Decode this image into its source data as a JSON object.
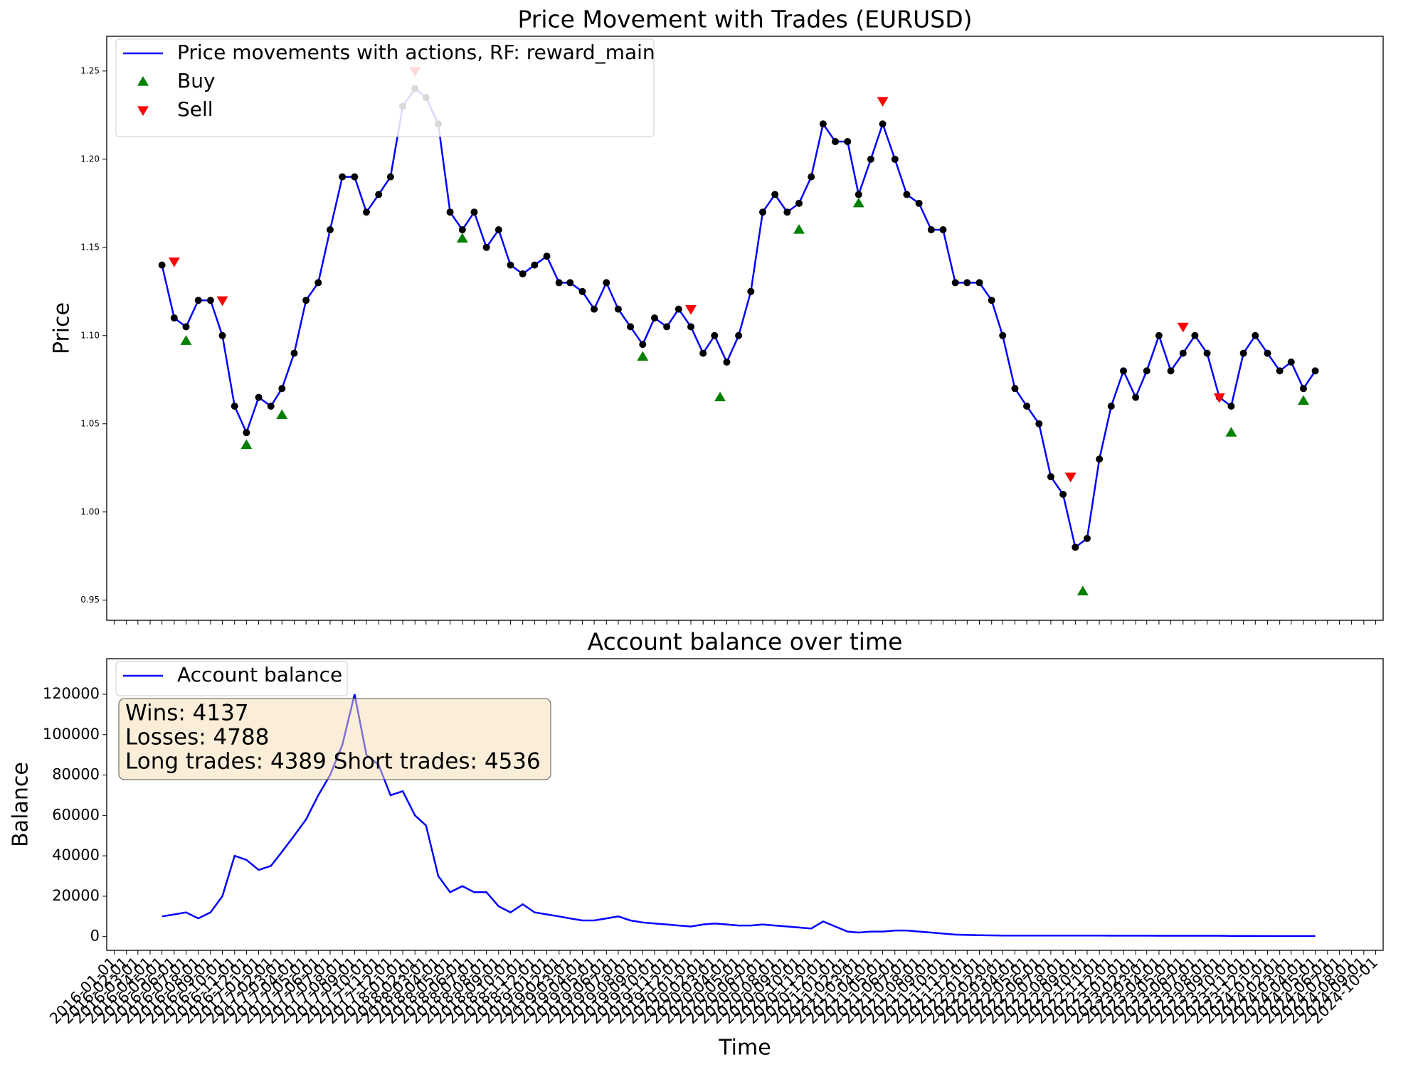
{
  "chart_data": [
    {
      "type": "line",
      "title": "Price Movement with Trades (EURUSD)",
      "ylabel": "Price",
      "xlim": [
        "2015-12-13",
        "2024-10-20"
      ],
      "ylim": [
        0.9386,
        1.2697
      ],
      "yticks": [
        0.95,
        {
          "value": 1.0,
          "label": "1.00"
        },
        1.05,
        {
          "value": 1.1,
          "label": "1.10"
        },
        1.15,
        {
          "value": 1.2,
          "label": "1.20"
        },
        1.25
      ],
      "legend": "upper left",
      "series": [
        {
          "name": "Price movements with actions, RF: reward_main",
          "type": "line",
          "color": "#0000ff",
          "marker_color": "#000000",
          "x": [
            "2016-05-01",
            "2016-06-01",
            "2016-07-01",
            "2016-08-01",
            "2016-09-01",
            "2016-10-01",
            "2016-11-01",
            "2016-12-01",
            "2017-01-01",
            "2017-02-01",
            "2017-03-01",
            "2017-04-01",
            "2017-05-01",
            "2017-06-01",
            "2017-07-01",
            "2017-08-01",
            "2017-09-01",
            "2017-10-01",
            "2017-11-01",
            "2017-12-01",
            "2018-01-01",
            "2018-02-01",
            "2018-03-01",
            "2018-04-01",
            "2018-05-01",
            "2018-06-01",
            "2018-07-01",
            "2018-08-01",
            "2018-09-01",
            "2018-10-01",
            "2018-11-01",
            "2018-12-01",
            "2019-01-01",
            "2019-02-01",
            "2019-03-01",
            "2019-04-01",
            "2019-05-01",
            "2019-06-01",
            "2019-07-01",
            "2019-08-01",
            "2019-09-01",
            "2019-10-01",
            "2019-11-01",
            "2019-12-01",
            "2020-01-01",
            "2020-02-01",
            "2020-03-01",
            "2020-04-01",
            "2020-05-01",
            "2020-06-01",
            "2020-07-01",
            "2020-08-01",
            "2020-09-01",
            "2020-10-01",
            "2020-11-01",
            "2020-12-01",
            "2021-01-01",
            "2021-02-01",
            "2021-03-01",
            "2021-04-01",
            "2021-05-01",
            "2021-06-01",
            "2021-07-01",
            "2021-08-01",
            "2021-09-01",
            "2021-10-01",
            "2021-11-01",
            "2021-12-01",
            "2022-01-01",
            "2022-02-01",
            "2022-03-01",
            "2022-04-01",
            "2022-05-01",
            "2022-06-01",
            "2022-07-01",
            "2022-08-01",
            "2022-09-01",
            "2022-10-01",
            "2022-11-01",
            "2022-12-01",
            "2023-01-01",
            "2023-02-01",
            "2023-03-01",
            "2023-04-01",
            "2023-05-01",
            "2023-06-01",
            "2023-07-01",
            "2023-08-01",
            "2023-09-01",
            "2023-10-01",
            "2023-11-01",
            "2023-12-01",
            "2024-01-01",
            "2024-02-01",
            "2024-03-01",
            "2024-04-01",
            "2024-05-01"
          ],
          "values": [
            1.14,
            1.11,
            1.105,
            1.12,
            1.12,
            1.1,
            1.06,
            1.045,
            1.065,
            1.06,
            1.07,
            1.09,
            1.12,
            1.13,
            1.16,
            1.19,
            1.19,
            1.17,
            1.18,
            1.19,
            1.23,
            1.24,
            1.235,
            1.22,
            1.17,
            1.16,
            1.17,
            1.15,
            1.16,
            1.14,
            1.135,
            1.14,
            1.145,
            1.13,
            1.13,
            1.125,
            1.115,
            1.13,
            1.115,
            1.105,
            1.095,
            1.11,
            1.105,
            1.115,
            1.105,
            1.09,
            1.1,
            1.085,
            1.1,
            1.125,
            1.17,
            1.18,
            1.17,
            1.175,
            1.19,
            1.22,
            1.21,
            1.21,
            1.18,
            1.2,
            1.22,
            1.2,
            1.18,
            1.175,
            1.16,
            1.16,
            1.13,
            1.13,
            1.13,
            1.12,
            1.1,
            1.07,
            1.06,
            1.05,
            1.02,
            1.01,
            0.98,
            0.985,
            1.03,
            1.06,
            1.08,
            1.065,
            1.08,
            1.1,
            1.08,
            1.09,
            1.1,
            1.09,
            1.065,
            1.06,
            1.09,
            1.1,
            1.09,
            1.08,
            1.085,
            1.07,
            1.08
          ]
        },
        {
          "name": "Buy",
          "type": "scatter",
          "marker": "triangle-up",
          "color": "#008000",
          "x": [
            "2016-07-01",
            "2016-12-01",
            "2017-03-01",
            "2018-06-01",
            "2019-09-01",
            "2020-03-15",
            "2020-10-01",
            "2021-03-01",
            "2022-09-20",
            "2023-10-01",
            "2024-04-01"
          ],
          "values": [
            1.097,
            1.038,
            1.055,
            1.155,
            1.088,
            1.065,
            1.16,
            1.175,
            0.955,
            1.045,
            1.063
          ]
        },
        {
          "name": "Sell",
          "type": "scatter",
          "marker": "triangle-down",
          "color": "#ff0000",
          "x": [
            "2016-06-01",
            "2016-10-01",
            "2018-02-01",
            "2020-01-01",
            "2021-05-01",
            "2022-08-20",
            "2023-06-01",
            "2023-09-01"
          ],
          "values": [
            1.142,
            1.12,
            1.25,
            1.115,
            1.233,
            1.02,
            1.105,
            1.065
          ]
        }
      ]
    },
    {
      "type": "line",
      "title": "Account balance over time",
      "xlabel": "Time",
      "ylabel": "Balance",
      "xlim": [
        "2015-12-13",
        "2024-10-20"
      ],
      "ylim": [
        -6800,
        137600
      ],
      "yticks": [
        0,
        20000,
        40000,
        60000,
        80000,
        100000,
        120000
      ],
      "xticks": [
        "2016-01-01",
        "2016-02-01",
        "2016-03-01",
        "2016-04-01",
        "2016-05-01",
        "2016-06-01",
        "2016-07-01",
        "2016-08-01",
        "2016-09-01",
        "2016-10-01",
        "2016-11-01",
        "2016-12-01",
        "2017-01-01",
        "2017-02-01",
        "2017-03-01",
        "2017-04-01",
        "2017-05-01",
        "2017-06-01",
        "2017-07-01",
        "2017-08-01",
        "2017-09-01",
        "2017-10-01",
        "2017-11-01",
        "2017-12-01",
        "2018-01-01",
        "2018-02-01",
        "2018-03-01",
        "2018-04-01",
        "2018-05-01",
        "2018-06-01",
        "2018-07-01",
        "2018-08-01",
        "2018-09-01",
        "2018-10-01",
        "2018-11-01",
        "2018-12-01",
        "2019-01-01",
        "2019-02-01",
        "2019-03-01",
        "2019-04-01",
        "2019-05-01",
        "2019-06-01",
        "2019-07-01",
        "2019-08-01",
        "2019-09-01",
        "2019-10-01",
        "2019-11-01",
        "2019-12-01",
        "2020-01-01",
        "2020-02-01",
        "2020-03-01",
        "2020-04-01",
        "2020-05-01",
        "2020-06-01",
        "2020-07-01",
        "2020-08-01",
        "2020-09-01",
        "2020-10-01",
        "2020-11-01",
        "2020-12-01",
        "2021-01-01",
        "2021-02-01",
        "2021-03-01",
        "2021-04-01",
        "2021-05-01",
        "2021-06-01",
        "2021-07-01",
        "2021-08-01",
        "2021-09-01",
        "2021-10-01",
        "2021-11-01",
        "2021-12-01",
        "2022-01-01",
        "2022-02-01",
        "2022-03-01",
        "2022-04-01",
        "2022-05-01",
        "2022-06-01",
        "2022-07-01",
        "2022-08-01",
        "2022-09-01",
        "2022-10-01",
        "2022-11-01",
        "2022-12-01",
        "2023-01-01",
        "2023-02-01",
        "2023-03-01",
        "2023-04-01",
        "2023-05-01",
        "2023-06-01",
        "2023-07-01",
        "2023-08-01",
        "2023-09-01",
        "2023-10-01",
        "2023-11-01",
        "2023-12-01",
        "2024-01-01",
        "2024-02-01",
        "2024-03-01",
        "2024-04-01",
        "2024-05-01",
        "2024-06-01",
        "2024-07-01",
        "2024-08-01",
        "2024-09-01",
        "2024-10-01"
      ],
      "legend": "upper left",
      "annotation": [
        "Wins: 4137",
        "Losses: 4788",
        "Long trades: 4389 Short trades: 4536"
      ],
      "series": [
        {
          "name": "Account balance",
          "type": "line",
          "color": "#0000ff",
          "x": [
            "2016-05-01",
            "2016-06-01",
            "2016-07-01",
            "2016-08-01",
            "2016-09-01",
            "2016-10-01",
            "2016-11-01",
            "2016-12-01",
            "2017-01-01",
            "2017-02-01",
            "2017-03-01",
            "2017-04-01",
            "2017-05-01",
            "2017-06-01",
            "2017-07-01",
            "2017-08-01",
            "2017-09-01",
            "2017-10-01",
            "2017-11-01",
            "2017-12-01",
            "2018-01-01",
            "2018-02-01",
            "2018-03-01",
            "2018-04-01",
            "2018-05-01",
            "2018-06-01",
            "2018-07-01",
            "2018-08-01",
            "2018-09-01",
            "2018-10-01",
            "2018-11-01",
            "2018-12-01",
            "2019-01-01",
            "2019-02-01",
            "2019-03-01",
            "2019-04-01",
            "2019-05-01",
            "2019-06-01",
            "2019-07-01",
            "2019-08-01",
            "2019-09-01",
            "2019-10-01",
            "2019-11-01",
            "2019-12-01",
            "2020-01-01",
            "2020-02-01",
            "2020-03-01",
            "2020-04-01",
            "2020-05-01",
            "2020-06-01",
            "2020-07-01",
            "2020-08-01",
            "2020-09-01",
            "2020-10-01",
            "2020-11-01",
            "2020-12-01",
            "2021-01-01",
            "2021-02-01",
            "2021-03-01",
            "2021-04-01",
            "2021-05-01",
            "2021-06-01",
            "2021-07-01",
            "2021-08-01",
            "2021-09-01",
            "2021-10-01",
            "2021-11-01",
            "2021-12-01",
            "2022-01-01",
            "2022-02-01",
            "2022-03-01",
            "2022-04-01",
            "2022-05-01",
            "2022-06-01",
            "2022-07-01",
            "2022-08-01",
            "2022-09-01",
            "2022-10-01",
            "2022-11-01",
            "2022-12-01",
            "2023-01-01",
            "2023-02-01",
            "2023-03-01",
            "2023-04-01",
            "2023-05-01",
            "2023-06-01",
            "2023-07-01",
            "2023-08-01",
            "2023-09-01",
            "2023-10-01",
            "2023-11-01",
            "2023-12-01",
            "2024-01-01",
            "2024-02-01",
            "2024-03-01",
            "2024-04-01",
            "2024-05-01"
          ],
          "values": [
            10000,
            11000,
            12000,
            9000,
            12000,
            20000,
            40000,
            38000,
            33000,
            35000,
            42000,
            50000,
            58000,
            70000,
            80000,
            95000,
            120000,
            90000,
            85000,
            70000,
            72000,
            60000,
            55000,
            30000,
            22000,
            25000,
            22000,
            22000,
            15000,
            12000,
            16000,
            12000,
            11000,
            10000,
            9000,
            8000,
            8000,
            9000,
            10000,
            8000,
            7000,
            6500,
            6000,
            5500,
            5000,
            6000,
            6500,
            6000,
            5500,
            5500,
            6000,
            5500,
            5000,
            4500,
            4000,
            7500,
            5000,
            2500,
            2000,
            2500,
            2500,
            3000,
            3000,
            2500,
            2000,
            1500,
            1000,
            800,
            700,
            600,
            500,
            500,
            500,
            500,
            500,
            500,
            500,
            500,
            500,
            450,
            450,
            450,
            450,
            400,
            400,
            400,
            400,
            400,
            400,
            350,
            350,
            350,
            300,
            300,
            300,
            300,
            300
          ]
        }
      ]
    }
  ]
}
